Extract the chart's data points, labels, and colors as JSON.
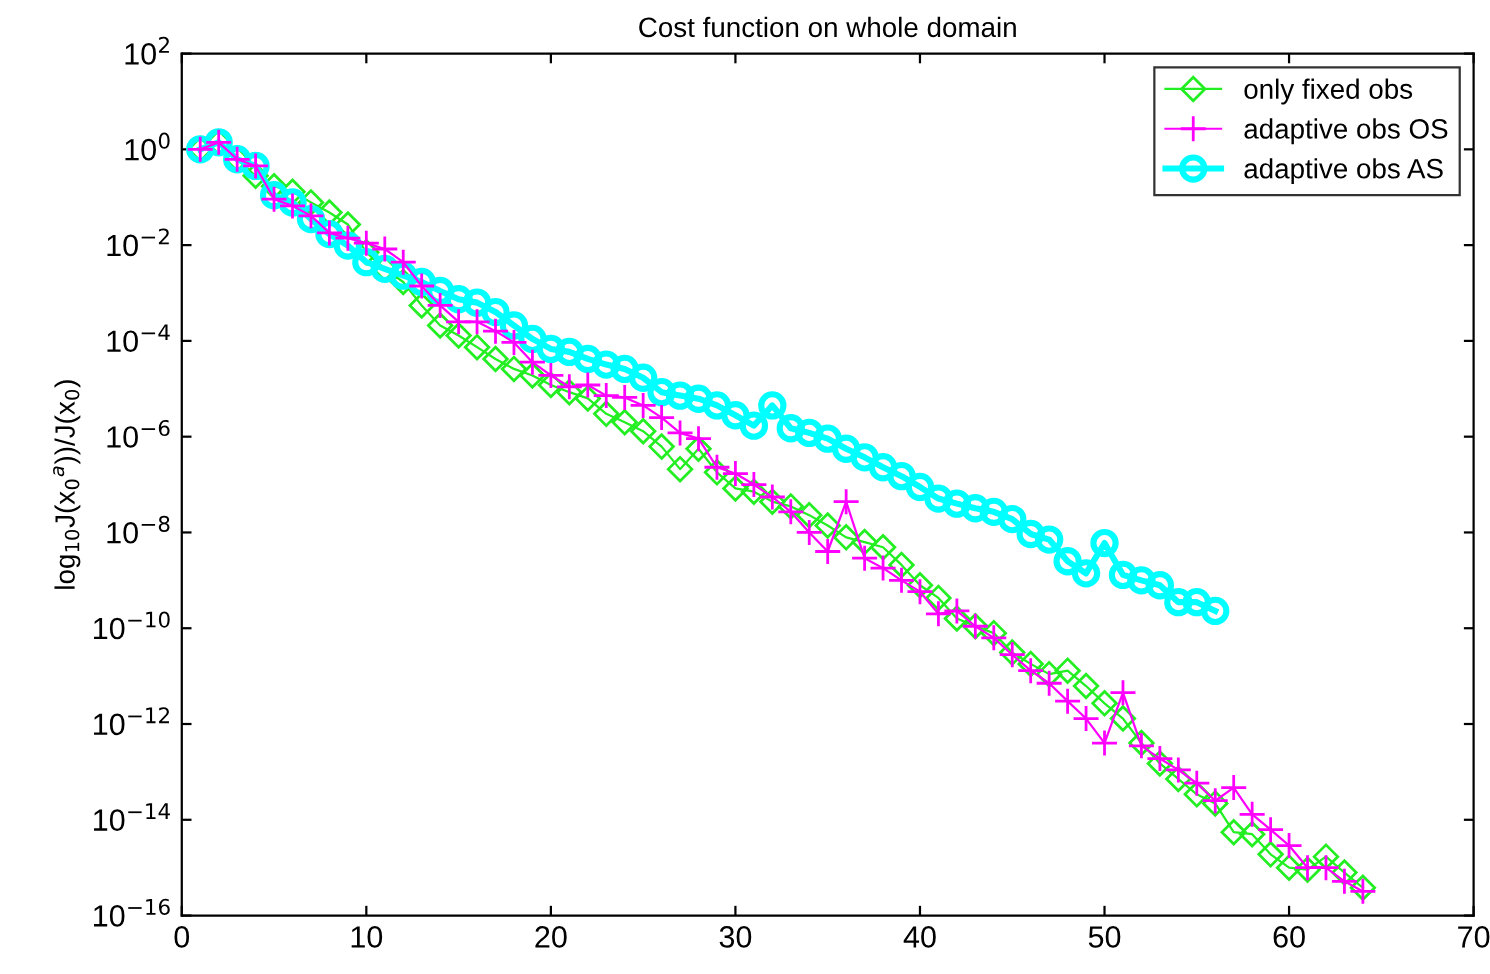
{
  "chart_data": {
    "type": "line",
    "title": "Cost function on whole domain",
    "ylabel": "log$_{10}$J(x$_{0}$$^{a}$))/J(x$_{0}$)",
    "log": "y",
    "grid": false,
    "legend": "top right",
    "xlim": [
      0,
      70
    ],
    "xticks": [
      0,
      10,
      20,
      30,
      40,
      50,
      60,
      70
    ],
    "ylim": [
      1e-16,
      100
    ],
    "yticks": [
      {
        "value": 100,
        "label": "10$^{2}$"
      },
      {
        "value": 1,
        "label": "10$^{0}$"
      },
      {
        "value": 0.01,
        "label": "10$^{−2}$"
      },
      {
        "value": 0.0001,
        "label": "10$^{−4}$"
      },
      {
        "value": 1e-06,
        "label": "10$^{−6}$"
      },
      {
        "value": 1e-08,
        "label": "10$^{−8}$"
      },
      {
        "value": 1e-10,
        "label": "10$^{−10}$"
      },
      {
        "value": 1e-12,
        "label": "10$^{−12}$"
      },
      {
        "value": 1e-14,
        "label": "10$^{−14}$"
      },
      {
        "value": 1e-16,
        "label": "10$^{−16}$"
      }
    ],
    "x": [
      1,
      2,
      3,
      4,
      5,
      6,
      7,
      8,
      9,
      10,
      11,
      12,
      13,
      14,
      15,
      16,
      17,
      18,
      19,
      20,
      21,
      22,
      23,
      24,
      25,
      26,
      27,
      28,
      29,
      30,
      31,
      32,
      33,
      34,
      35,
      36,
      37,
      38,
      39,
      40,
      41,
      42,
      43,
      44,
      45,
      46,
      47,
      48,
      49,
      50,
      51,
      52,
      53,
      54,
      55,
      56,
      57,
      58,
      59,
      60,
      61,
      62,
      63,
      64
    ],
    "series": [
      {
        "name": "only fixed obs",
        "color": "#22ee22",
        "marker": "diamond",
        "values": [
          1,
          1.4,
          0.62,
          0.28,
          0.17,
          0.13,
          0.078,
          0.048,
          0.027,
          0.0071,
          0.0032,
          0.0017,
          0.00055,
          0.00021,
          0.00013,
          7.4e-05,
          4.2e-05,
          2.6e-05,
          1.9e-05,
          1.2e-05,
          8.5e-06,
          6.3e-06,
          3e-06,
          2e-06,
          1.3e-06,
          6.2e-07,
          2.1e-07,
          5.6e-07,
          1.8e-07,
          8.3e-08,
          7.1e-08,
          4.4e-08,
          3.5e-08,
          2.3e-08,
          1.4e-08,
          7.9e-09,
          6.3e-09,
          4.9e-09,
          2.1e-09,
          7.9e-10,
          4.3e-10,
          1.6e-10,
          1.1e-10,
          7.9e-11,
          3.1e-11,
          1.8e-11,
          1.1e-11,
          1.3e-11,
          6.2e-12,
          2.7e-12,
          1.3e-12,
          4e-13,
          1.5e-13,
          7.1e-14,
          3.4e-14,
          2.2e-14,
          5.5e-15,
          5e-15,
          1.9e-15,
          1e-15,
          9.1e-16,
          1.7e-15,
          7.9e-16,
          3.8e-16
        ]
      },
      {
        "name": "adaptive obs OS",
        "color": "#ff00ff",
        "marker": "cross",
        "values": [
          1,
          1.4,
          0.62,
          0.45,
          0.091,
          0.066,
          0.041,
          0.018,
          0.014,
          0.011,
          0.0083,
          0.0044,
          0.0014,
          0.00055,
          0.00025,
          0.00025,
          0.00016,
          9.3e-05,
          3.6e-05,
          1.9e-05,
          1.1e-05,
          1.2e-05,
          7.2e-06,
          6.6e-06,
          4.5e-06,
          2.5e-06,
          1.2e-06,
          9.1e-07,
          2.3e-07,
          1.7e-07,
          1e-07,
          5.5e-08,
          2.7e-08,
          1e-08,
          4e-09,
          4.4e-08,
          2.9e-09,
          1.8e-09,
          1e-09,
          5.8e-10,
          2e-10,
          2.3e-10,
          1.1e-10,
          6.3e-11,
          2.8e-11,
          1.3e-11,
          7.1e-12,
          3e-12,
          1.3e-12,
          4e-13,
          4.5e-12,
          3.5e-13,
          1.9e-13,
          1.1e-13,
          5.8e-14,
          2.5e-14,
          4.7e-14,
          1.3e-14,
          6.2e-15,
          2.9e-15,
          1e-15,
          1e-15,
          5.2e-16,
          3.2e-16
        ]
      },
      {
        "name": "adaptive obs AS",
        "color": "#00ffff",
        "marker": "circle",
        "values": [
          1,
          1.4,
          0.62,
          0.45,
          0.11,
          0.078,
          0.035,
          0.017,
          0.0098,
          0.0044,
          0.0032,
          0.0023,
          0.0017,
          0.0011,
          0.00074,
          0.00063,
          0.0004,
          0.00021,
          0.00011,
          6.8e-05,
          5.9e-05,
          4.2e-05,
          3.2e-05,
          2.6e-05,
          1.7e-05,
          8.5e-06,
          7.2e-06,
          6.2e-06,
          4.5e-06,
          2.8e-06,
          1.7e-06,
          4.5e-06,
          1.5e-06,
          1.2e-06,
          9.1e-07,
          5.6e-07,
          3.7e-07,
          2.3e-07,
          1.5e-07,
          8.9e-08,
          5.1e-08,
          4e-08,
          3.2e-08,
          2.7e-08,
          1.9e-08,
          9.3e-09,
          7.1e-09,
          2.5e-09,
          1.4e-09,
          6e-09,
          1.3e-09,
          1e-09,
          7.9e-10,
          3.5e-10,
          3.5e-10,
          2.3e-10,
          null,
          null,
          null,
          null,
          null,
          null,
          null,
          null
        ]
      }
    ]
  }
}
